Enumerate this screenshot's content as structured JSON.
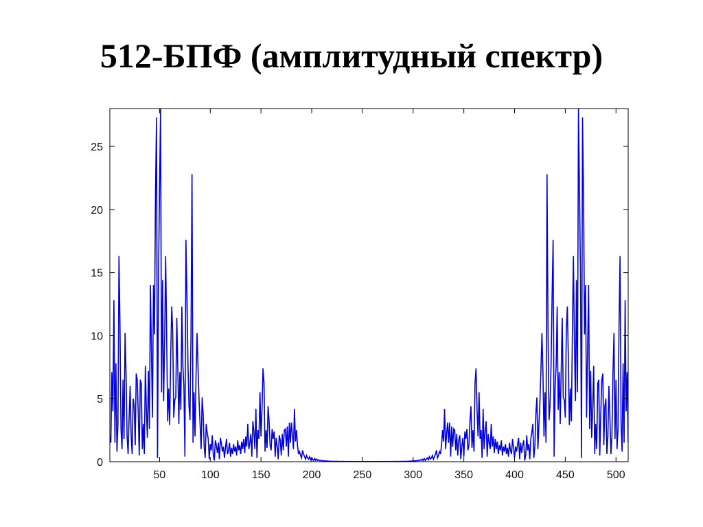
{
  "chart_data": {
    "type": "line",
    "title": "512-БПФ (амплитудный спектр)",
    "xlabel": "",
    "ylabel": "",
    "xlim": [
      1,
      512
    ],
    "ylim": [
      0,
      28
    ],
    "xticks": [
      50,
      100,
      150,
      200,
      250,
      300,
      350,
      400,
      450,
      500
    ],
    "yticks": [
      0,
      5,
      10,
      15,
      20,
      25
    ],
    "grid": false,
    "legend": "none",
    "line_color": "#0000e0",
    "values": [
      2.0,
      1.5,
      7.1,
      4.0,
      12.8,
      1.5,
      7.8,
      0.8,
      3.0,
      16.3,
      10.8,
      2.6,
      1.0,
      6.5,
      1.8,
      10.2,
      7.0,
      2.0,
      0.6,
      3.5,
      6.0,
      2.0,
      0.6,
      5.0,
      4.4,
      1.3,
      7.0,
      6.5,
      3.8,
      0.5,
      6.5,
      6.2,
      1.0,
      3.0,
      0.6,
      7.6,
      4.1,
      1.9,
      7.2,
      2.6,
      14.0,
      8.8,
      3.5,
      14.0,
      10.1,
      21.2,
      27.3,
      0.3,
      14.7,
      21.7,
      28.0,
      5.5,
      14.4,
      4.8,
      9.5,
      16.3,
      10.2,
      3.2,
      5.8,
      2.9,
      8.4,
      12.3,
      10.3,
      3.5,
      4.9,
      5.1,
      11.4,
      7.4,
      3.0,
      7.1,
      4.1,
      12.3,
      7.6,
      6.0,
      0.4,
      17.6,
      13.2,
      7.8,
      4.5,
      3.3,
      10.0,
      22.8,
      1.5,
      5.5,
      2.0,
      7.0,
      10.2,
      7.3,
      4.8,
      2.9,
      1.0,
      5.1,
      3.8,
      1.2,
      0.3,
      3.0,
      2.3,
      1.8,
      0.2,
      1.4,
      0.9,
      2.1,
      0.5,
      0.1,
      1.7,
      1.3,
      0.7,
      1.5,
      0.2,
      1.9,
      1.4,
      0.8,
      1.2,
      0.3,
      1.1,
      1.8,
      0.6,
      0.9,
      1.5,
      0.4,
      1.1,
      0.6,
      1.4,
      0.8,
      1.2,
      0.5,
      1.7,
      0.9,
      1.3,
      0.6,
      1.6,
      1.0,
      1.8,
      0.7,
      2.0,
      1.2,
      3.0,
      1.0,
      1.5,
      2.2,
      0.4,
      3.2,
      2.4,
      1.0,
      4.2,
      0.3,
      2.5,
      1.8,
      5.5,
      2.0,
      4.1,
      7.4,
      6.2,
      0.8,
      2.5,
      1.1,
      4.4,
      3.2,
      1.3,
      0.9,
      2.6,
      1.8,
      2.4,
      0.4,
      1.9,
      1.2,
      0.2,
      2.1,
      1.7,
      0.5,
      2.2,
      0.9,
      2.5,
      2.6,
      1.2,
      2.8,
      0.4,
      3.1,
      1.5,
      3.1,
      2.2,
      1.0,
      4.2,
      1.6,
      2.5,
      1.3,
      0.6,
      0.8,
      0.5,
      0.3,
      0.9,
      0.6,
      0.4,
      0.2,
      0.5,
      0.3,
      0.2,
      0.4,
      0.15,
      0.3,
      0.2,
      0.1,
      0.25,
      0.1,
      0.2,
      0.1,
      0.15,
      0.08,
      0.12,
      0.06,
      0.1,
      0.05,
      0.08,
      0.04,
      0.07,
      0.03,
      0.05,
      0.03,
      0.04,
      0.02,
      0.04,
      0.02,
      0.03,
      0.02,
      0.03,
      0.02,
      0.03,
      0.01,
      0.02,
      0.02,
      0.03,
      0.01,
      0.02,
      0.02,
      0.01,
      0.02,
      0.01,
      0.02,
      0.01,
      0.02,
      0.01,
      0.02,
      0.01,
      0.01,
      0.02,
      0.01,
      0.01,
      0.01,
      0.02,
      0.01,
      0.01,
      0.01,
      0.01,
      0.01,
      0.01,
      0.01,
      0.01,
      0.01,
      0.01,
      0.01,
      0.01,
      0.01,
      0.01,
      0.01,
      0.02,
      0.01,
      0.01,
      0.01,
      0.02,
      0.01,
      0.01,
      0.02,
      0.01,
      0.02,
      0.01,
      0.02,
      0.01,
      0.02,
      0.01,
      0.02,
      0.02,
      0.01,
      0.03,
      0.02,
      0.02,
      0.01,
      0.03,
      0.02,
      0.03,
      0.02,
      0.03,
      0.02,
      0.04,
      0.02,
      0.04,
      0.03,
      0.05,
      0.03,
      0.07,
      0.04,
      0.08,
      0.05,
      0.1,
      0.06,
      0.12,
      0.08,
      0.15,
      0.1,
      0.2,
      0.1,
      0.25,
      0.1,
      0.2,
      0.3,
      0.15,
      0.4,
      0.2,
      0.3,
      0.5,
      0.2,
      0.4,
      0.6,
      0.9,
      0.3,
      0.5,
      0.8,
      0.6,
      1.3,
      2.5,
      1.6,
      4.2,
      1.0,
      2.2,
      3.1,
      1.5,
      3.1,
      0.4,
      2.8,
      1.2,
      2.6,
      2.5,
      0.9,
      2.2,
      0.5,
      1.7,
      2.1,
      0.2,
      1.2,
      1.9,
      0.4,
      2.4,
      1.8,
      2.6,
      0.9,
      1.3,
      3.2,
      4.4,
      1.1,
      2.5,
      0.8,
      6.2,
      7.4,
      4.1,
      2.0,
      5.5,
      1.8,
      2.5,
      0.3,
      4.2,
      1.0,
      2.4,
      3.2,
      0.4,
      2.2,
      1.5,
      1.0,
      3.0,
      1.2,
      2.0,
      0.7,
      1.8,
      1.0,
      1.6,
      0.6,
      1.3,
      0.9,
      1.7,
      0.5,
      1.2,
      0.8,
      1.4,
      0.6,
      1.1,
      0.4,
      1.5,
      0.9,
      0.6,
      1.8,
      1.1,
      0.3,
      1.2,
      0.8,
      1.4,
      1.9,
      0.2,
      1.5,
      0.7,
      1.3,
      1.7,
      0.1,
      0.5,
      2.1,
      0.9,
      1.4,
      0.2,
      1.8,
      2.3,
      3.0,
      0.3,
      1.2,
      3.8,
      5.1,
      1.0,
      2.9,
      4.8,
      7.3,
      10.2,
      7.0,
      2.0,
      5.5,
      1.5,
      22.8,
      10.0,
      3.3,
      4.5,
      7.8,
      13.2,
      17.6,
      0.4,
      6.0,
      7.6,
      12.3,
      4.1,
      7.1,
      3.0,
      7.4,
      11.4,
      5.1,
      4.9,
      3.5,
      10.3,
      12.3,
      8.4,
      2.9,
      5.8,
      3.2,
      10.2,
      16.3,
      9.5,
      4.8,
      14.4,
      5.5,
      28.0,
      21.7,
      14.7,
      0.3,
      27.3,
      21.2,
      10.1,
      14.0,
      3.5,
      8.8,
      14.0,
      2.6,
      7.2,
      1.9,
      4.1,
      7.6,
      0.6,
      3.0,
      1.0,
      6.2,
      6.5,
      0.5,
      3.8,
      6.5,
      7.0,
      1.3,
      4.4,
      5.0,
      0.6,
      2.0,
      6.0,
      3.5,
      0.6,
      2.0,
      7.0,
      10.2,
      1.8,
      6.5,
      1.0,
      2.6,
      10.8,
      16.3,
      3.0,
      0.8,
      7.8,
      1.5,
      12.8,
      4.0,
      7.1,
      1.5
    ]
  }
}
